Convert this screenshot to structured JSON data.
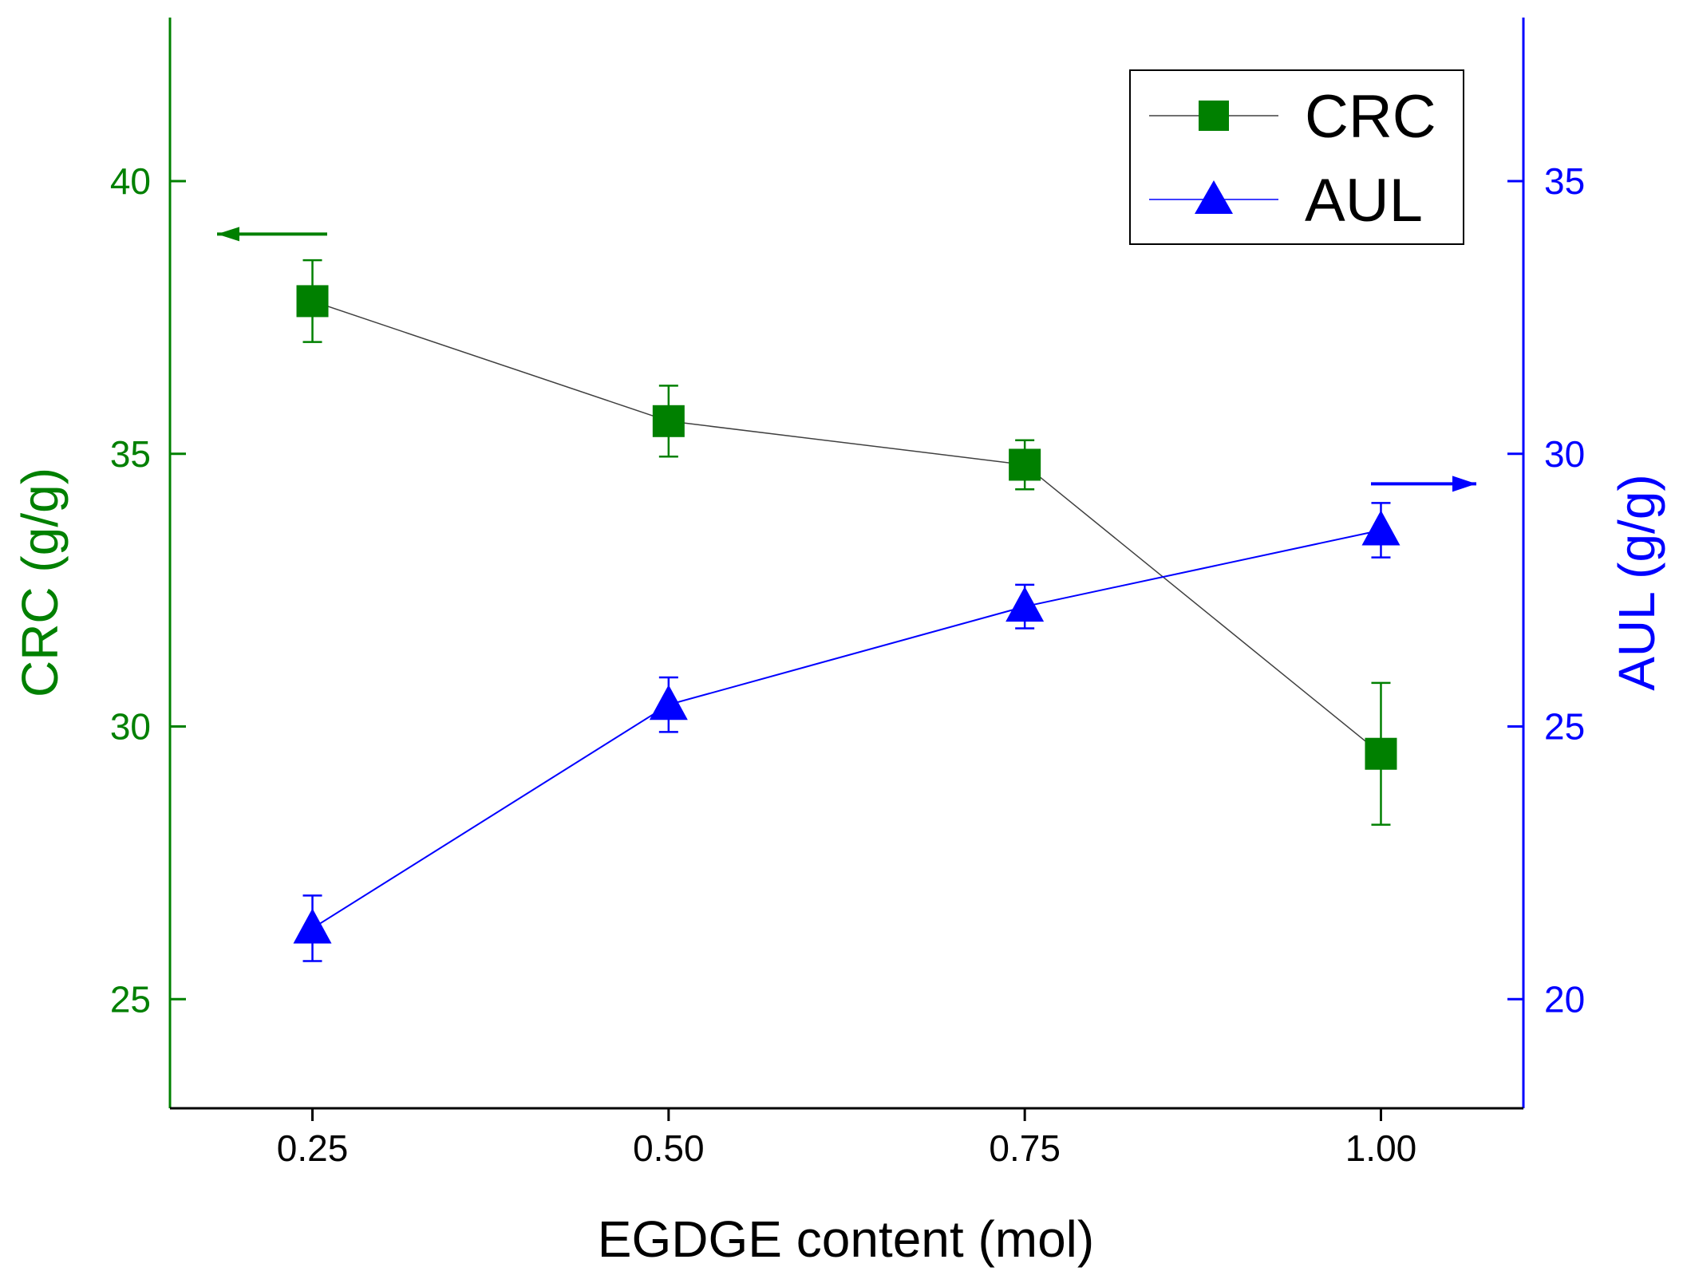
{
  "chart_data": {
    "type": "line",
    "title": "",
    "xlabel": "EGDGE content (mol)",
    "x": [
      0.25,
      0.5,
      0.75,
      1.0
    ],
    "xticks": [
      "0.25",
      "0.50",
      "0.75",
      "1.00"
    ],
    "xlim": [
      0.15,
      1.1
    ],
    "y_left": {
      "label": "CRC (g/g)",
      "color": "#008000",
      "ylim": [
        23,
        43
      ],
      "ticks": [
        25,
        30,
        35,
        40
      ],
      "tick_labels": [
        "25",
        "30",
        "35",
        "40"
      ]
    },
    "y_right": {
      "label": "AUL (g/g)",
      "color": "#0000ff",
      "ylim": [
        18,
        38
      ],
      "ticks": [
        20,
        25,
        30,
        35
      ],
      "tick_labels": [
        "20",
        "25",
        "30",
        "35"
      ]
    },
    "series": [
      {
        "name": "CRC",
        "axis": "left",
        "marker": "square",
        "marker_color": "#008000",
        "line_color": "#404040",
        "values": [
          37.8,
          35.6,
          34.8,
          29.5
        ],
        "errors": [
          0.75,
          0.65,
          0.45,
          1.3
        ]
      },
      {
        "name": "AUL",
        "axis": "right",
        "marker": "triangle",
        "marker_color": "#0000ff",
        "line_color": "#0000ff",
        "values": [
          21.3,
          25.4,
          27.2,
          28.6
        ],
        "errors": [
          0.6,
          0.5,
          0.4,
          0.5
        ]
      }
    ],
    "legend": {
      "position": "top-right",
      "entries": [
        "CRC",
        "AUL"
      ]
    },
    "annotations": [
      {
        "type": "arrow",
        "direction": "left",
        "points_to": "left axis",
        "color": "#008000"
      },
      {
        "type": "arrow",
        "direction": "right",
        "points_to": "right axis",
        "color": "#0000ff"
      }
    ]
  }
}
